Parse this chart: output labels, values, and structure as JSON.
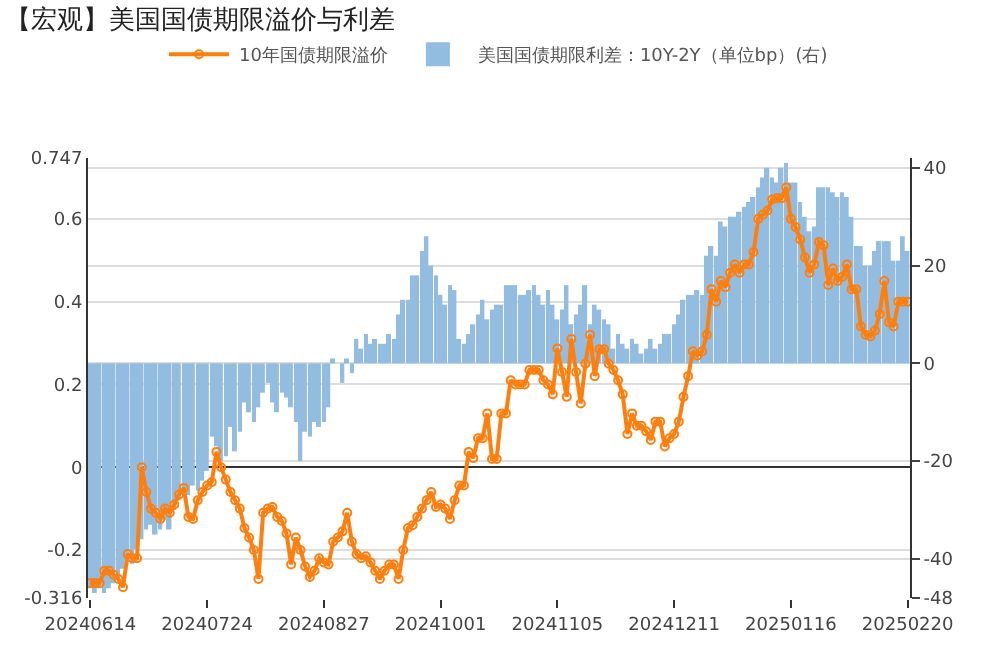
{
  "chart_data": {
    "type": "line",
    "title": "【宏观】美国国债期限溢价与利差",
    "categories": [
      "20240614",
      null,
      null,
      null,
      null,
      null,
      null,
      null,
      null,
      null,
      null,
      null,
      null,
      null,
      null,
      null,
      null,
      null,
      null,
      null,
      null,
      null,
      null,
      null,
      null,
      "20240724",
      null,
      null,
      null,
      null,
      null,
      null,
      null,
      null,
      null,
      null,
      null,
      null,
      null,
      null,
      null,
      null,
      null,
      null,
      null,
      null,
      null,
      null,
      null,
      null,
      "20240827",
      null,
      null,
      null,
      null,
      null,
      null,
      null,
      null,
      null,
      null,
      null,
      null,
      null,
      null,
      null,
      null,
      null,
      null,
      null,
      null,
      null,
      null,
      null,
      null,
      "20241001",
      null,
      null,
      null,
      null,
      null,
      null,
      null,
      null,
      null,
      null,
      null,
      null,
      null,
      null,
      null,
      null,
      null,
      null,
      null,
      null,
      null,
      null,
      null,
      null,
      "20241105",
      null,
      null,
      null,
      null,
      null,
      null,
      null,
      null,
      null,
      null,
      null,
      null,
      null,
      null,
      null,
      null,
      null,
      null,
      null,
      null,
      null,
      null,
      null,
      null,
      "20241211",
      null,
      null,
      null,
      null,
      null,
      null,
      null,
      null,
      null,
      null,
      null,
      null,
      null,
      null,
      null,
      null,
      null,
      null,
      null,
      null,
      null,
      null,
      null,
      null,
      "20250116",
      null,
      null,
      null,
      null,
      null,
      null,
      null,
      null,
      null,
      null,
      null,
      null,
      null,
      null,
      null,
      null,
      null,
      null,
      null,
      null,
      null,
      null,
      null,
      null,
      "20250220"
    ],
    "series": [
      {
        "name": "美国国债期限利差：10Y-2Y（单位bp）(右)",
        "type": "bar",
        "axis": "y2",
        "color": "#93bde0",
        "values": [
          -46,
          -47,
          -46,
          -47,
          -46,
          -45,
          -44,
          -42,
          -40,
          -41,
          -38,
          -36,
          -34,
          -33,
          -35,
          -34,
          -32,
          -34,
          -30,
          -28,
          -26,
          -27,
          -25,
          -26,
          -24,
          -22,
          -15,
          -17,
          -20,
          -19,
          -13,
          -18,
          -14,
          -8,
          -10,
          -12,
          -9,
          -6,
          -4,
          -8,
          -10,
          -6,
          -7,
          -9,
          -12,
          -20,
          -14,
          -15,
          -12,
          -13,
          -12,
          -9,
          1,
          0,
          -4,
          1,
          -2,
          5,
          3,
          6,
          4,
          5,
          4,
          4,
          6,
          5,
          10,
          13,
          13,
          18,
          18,
          23,
          26,
          20,
          18,
          14,
          12,
          16,
          15,
          5,
          4,
          6,
          8,
          10,
          13,
          9,
          11,
          12,
          12,
          16,
          16,
          16,
          14,
          14,
          15,
          16,
          14,
          12,
          15,
          12,
          9,
          11,
          16,
          8,
          10,
          12,
          16,
          8,
          12,
          11,
          9,
          8,
          3,
          6,
          4,
          3,
          5,
          4,
          2,
          3,
          5,
          3,
          4,
          6,
          6,
          8,
          10,
          13,
          14,
          14,
          15,
          14,
          22,
          24,
          22,
          29,
          28,
          30,
          30,
          31,
          32,
          33,
          34,
          36,
          38,
          40,
          38,
          37,
          40,
          41,
          37,
          37,
          33,
          30,
          27,
          28,
          36,
          36,
          36,
          35,
          34,
          35,
          34,
          30,
          24,
          24,
          20,
          20,
          23,
          25,
          25,
          25,
          21,
          21,
          26,
          23
        ]
      },
      {
        "name": "10年国债期限溢价",
        "color": "#ff7f0e",
        "values": [
          -0.28,
          -0.28,
          -0.28,
          -0.25,
          -0.25,
          -0.26,
          -0.27,
          -0.29,
          -0.21,
          -0.22,
          -0.22,
          0,
          -0.06,
          -0.1,
          -0.11,
          -0.125,
          -0.1,
          -0.11,
          -0.09,
          -0.066,
          -0.05,
          -0.12,
          -0.125,
          -0.08,
          -0.06,
          -0.044,
          -0.036,
          0.037,
          0,
          -0.03,
          -0.06,
          -0.08,
          -0.1,
          -0.147,
          -0.17,
          -0.2,
          -0.27,
          -0.11,
          -0.1,
          -0.096,
          -0.12,
          -0.13,
          -0.16,
          -0.235,
          -0.17,
          -0.2,
          -0.24,
          -0.265,
          -0.25,
          -0.22,
          -0.23,
          -0.235,
          -0.18,
          -0.17,
          -0.155,
          -0.11,
          -0.18,
          -0.21,
          -0.22,
          -0.215,
          -0.23,
          -0.25,
          -0.27,
          -0.25,
          -0.235,
          -0.235,
          -0.27,
          -0.2,
          -0.147,
          -0.14,
          -0.12,
          -0.1,
          -0.08,
          -0.06,
          -0.096,
          -0.09,
          -0.1,
          -0.125,
          -0.08,
          -0.044,
          -0.044,
          0.037,
          0.022,
          0.07,
          0.07,
          0.13,
          0.02,
          0.02,
          0.13,
          0.13,
          0.21,
          0.2,
          0.2,
          0.2,
          0.235,
          0.235,
          0.235,
          0.21,
          0.2,
          0.176,
          0.287,
          0.23,
          0.17,
          0.31,
          0.23,
          0.154,
          0.25,
          0.32,
          0.22,
          0.285,
          0.285,
          0.25,
          0.235,
          0.21,
          0.176,
          0.08,
          0.13,
          0.1,
          0.1,
          0.087,
          0.066,
          0.11,
          0.11,
          0.05,
          0.07,
          0.08,
          0.11,
          0.17,
          0.22,
          0.28,
          0.27,
          0.28,
          0.32,
          0.43,
          0.4,
          0.45,
          0.435,
          0.47,
          0.49,
          0.47,
          0.49,
          0.49,
          0.52,
          0.6,
          0.61,
          0.62,
          0.647,
          0.65,
          0.65,
          0.676,
          0.6,
          0.58,
          0.55,
          0.507,
          0.47,
          0.49,
          0.544,
          0.536,
          0.44,
          0.48,
          0.45,
          0.46,
          0.49,
          0.43,
          0.43,
          0.34,
          0.32,
          0.316,
          0.33,
          0.37,
          0.45,
          0.35,
          0.34,
          0.4,
          0.4,
          0.4
        ]
      }
    ],
    "ylim": [
      -0.316,
      0.747
    ],
    "yticks": [
      -0.316,
      -0.2,
      0,
      0.2,
      0.4,
      0.6,
      0.747
    ],
    "y2lim": [
      -48,
      42
    ],
    "y2ticks": [
      -48,
      -40,
      -20,
      0,
      20,
      40
    ],
    "grid": "y",
    "legend": "top",
    "marker": "circle",
    "line_style": "solid"
  }
}
